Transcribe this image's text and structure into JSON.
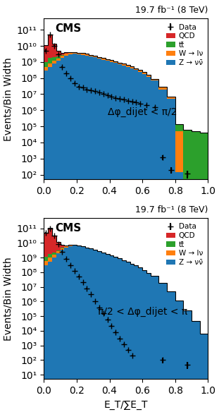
{
  "chart_data": [
    {
      "type": "bar",
      "stacked": true,
      "log": "y",
      "legend": "upper right",
      "title": "19.7 fb⁻¹ (8 TeV)",
      "ylabel": "Events/Bin Width",
      "annotations": [
        "CMS",
        "Δφ_dijet < π/2"
      ],
      "xlim": [
        0,
        1
      ],
      "xticks": [
        {
          "value": 0,
          "label": "0.0"
        },
        0.2,
        0.4,
        0.6,
        0.8,
        {
          "value": 1,
          "label": "1.0"
        }
      ],
      "ylim": [
        50,
        500000000000.0
      ],
      "yticks": [
        {
          "value": 100,
          "label": "10²"
        },
        {
          "value": 1000,
          "label": "10³"
        },
        {
          "value": 10000,
          "label": "10⁴"
        },
        {
          "value": 100000,
          "label": "10⁵"
        },
        {
          "value": 1000000,
          "label": "10⁶"
        },
        {
          "value": 10000000,
          "label": "10⁷"
        },
        {
          "value": 100000000,
          "label": "10⁸"
        },
        {
          "value": 1000000000,
          "label": "10⁹"
        },
        {
          "value": 10000000000,
          "label": "10¹⁰"
        },
        {
          "value": 100000000000,
          "label": "10¹¹"
        }
      ],
      "bins": [
        0.0,
        0.025,
        0.05,
        0.075,
        0.1,
        0.125,
        0.15,
        0.175,
        0.2,
        0.225,
        0.25,
        0.275,
        0.3,
        0.325,
        0.35,
        0.375,
        0.4,
        0.425,
        0.45,
        0.475,
        0.5,
        0.525,
        0.55,
        0.575,
        0.6,
        0.625,
        0.65,
        0.7,
        0.75,
        0.8,
        0.85,
        0.9,
        0.95,
        1.0
      ],
      "series": [
        {
          "name": "Z → νν̄",
          "values": [
            300000000.0,
            500000000.0,
            800000000.0,
            1200000000.0,
            1800000000.0,
            2500000000.0,
            3000000000.0,
            3200000000.0,
            3000000000.0,
            2800000000.0,
            2500000000.0,
            2200000000.0,
            1900000000.0,
            1600000000.0,
            1400000000.0,
            1200000000.0,
            1000000000.0,
            850000000.0,
            700000000.0,
            600000000.0,
            500000000.0,
            400000000.0,
            320000000.0,
            250000000.0,
            180000000.0,
            120000000.0,
            70000000.0,
            20000000.0,
            5000000.0,
            150,
            0,
            0,
            0
          ]
        },
        {
          "name": "W → lν",
          "values": [
            200000000.0,
            300000000.0,
            400000000.0,
            500000000.0,
            600000000.0,
            700000000.0,
            750000000.0,
            700000000.0,
            650000000.0,
            600000000.0,
            550000000.0,
            500000000.0,
            450000000.0,
            400000000.0,
            350000000.0,
            300000000.0,
            260000000.0,
            220000000.0,
            190000000.0,
            160000000.0,
            130000000.0,
            110000000.0,
            90000000.0,
            70000000.0,
            50000000.0,
            35000000.0,
            20000000.0,
            8000000.0,
            2000000.0,
            50000.0,
            0,
            0,
            0
          ]
        },
        {
          "name": "tt̄",
          "values": [
            500000000.0,
            1000000000.0,
            800000000.0,
            400000000.0,
            200000000.0,
            120000000.0,
            80000000.0,
            50000000.0,
            35000000.0,
            25000000.0,
            18000000.0,
            13000000.0,
            9000000.0,
            7000000.0,
            5000000.0,
            4000000.0,
            3000000.0,
            2500000.0,
            2000000.0,
            1500000.0,
            1200000.0,
            900000.0,
            700000.0,
            500000.0,
            400000.0,
            300000.0,
            200000.0,
            150000.0,
            100000.0,
            80000.0,
            60000.0,
            50000.0,
            40000.0
          ]
        },
        {
          "name": "QCD",
          "values": [
            10000000000.0,
            50000000000.0,
            12000000000.0,
            3000000000.0,
            1200000000.0,
            600000000.0,
            350000000.0,
            220000000.0,
            150000000.0,
            110000000.0,
            80000000.0,
            60000000.0,
            45000000.0,
            35000000.0,
            28000000.0,
            22000000.0,
            18000000.0,
            14000000.0,
            11000000.0,
            9000000.0,
            7000000.0,
            5500000.0,
            4500000.0,
            3500000.0,
            2800000.0,
            0,
            0,
            0,
            0,
            0,
            0,
            0,
            0
          ]
        },
        {
          "name": "Data",
          "type": "errorbar",
          "color": "black",
          "marker": "plus",
          "x": [
            0.0125,
            0.0375,
            0.0625,
            0.0875,
            0.1125,
            0.1375,
            0.1625,
            0.1875,
            0.2125,
            0.2375,
            0.2625,
            0.2875,
            0.3125,
            0.3375,
            0.3625,
            0.3875,
            0.4125,
            0.4375,
            0.4625,
            0.4875,
            0.5125,
            0.5375,
            0.5625,
            0.5875,
            0.625,
            0.675,
            0.725,
            0.775,
            0.875
          ],
          "values": [
            5000000000.0,
            50000000000.0,
            10000000000.0,
            3000000000.0,
            500000000.0,
            200000000.0,
            100000000.0,
            50000000.0,
            30000000.0,
            25000000.0,
            20000000.0,
            18000000.0,
            15000000.0,
            13000000.0,
            11000000.0,
            9000000.0,
            7000000.0,
            6000000.0,
            5000000.0,
            4500000.0,
            4000000.0,
            3500000.0,
            3000000.0,
            2500000.0,
            2000000.0,
            1500000.0,
            1200.0,
            200,
            120
          ],
          "yerr_low": [
            1000000000.0,
            3000000000.0,
            800000000.0,
            300000000.0,
            50000000.0,
            20000000.0,
            10000000.0,
            5000000.0,
            3000000.0,
            2500000.0,
            2000000.0,
            1800000.0,
            1500000.0,
            1300000.0,
            1100000.0,
            900000.0,
            700000.0,
            600000.0,
            500000.0,
            450000.0,
            400000.0,
            350000.0,
            300000.0,
            250000.0,
            200000.0,
            150000.0,
            400.0,
            80,
            60
          ],
          "yerr_high": [
            1000000000.0,
            3000000000.0,
            800000000.0,
            300000000.0,
            50000000.0,
            20000000.0,
            10000000.0,
            5000000.0,
            3000000.0,
            2500000.0,
            2000000.0,
            1800000.0,
            1500000.0,
            1300000.0,
            1100000.0,
            900000.0,
            700000.0,
            600000.0,
            500000.0,
            450000.0,
            400000.0,
            350000.0,
            300000.0,
            250000.0,
            200000.0,
            150000.0,
            400.0,
            80,
            60
          ]
        }
      ]
    },
    {
      "type": "bar",
      "stacked": true,
      "log": "y",
      "legend": "upper right",
      "title": "19.7 fb⁻¹ (8 TeV)",
      "xlabel": "E_T/∑E_T",
      "ylabel": "Events/Bin Width",
      "annotations": [
        "CMS",
        "π/2 < Δφ_dijet < π"
      ],
      "xlim": [
        0,
        1
      ],
      "xticks": [
        {
          "value": 0,
          "label": "0.0"
        },
        0.2,
        0.4,
        0.6,
        0.8,
        {
          "value": 1,
          "label": "1.0"
        }
      ],
      "ylim": [
        5,
        500000000000.0
      ],
      "yticks": [
        {
          "value": 10,
          "label": "10¹"
        },
        {
          "value": 100,
          "label": "10²"
        },
        {
          "value": 1000,
          "label": "10³"
        },
        {
          "value": 10000,
          "label": "10⁴"
        },
        {
          "value": 100000,
          "label": "10⁵"
        },
        {
          "value": 1000000,
          "label": "10⁶"
        },
        {
          "value": 10000000,
          "label": "10⁷"
        },
        {
          "value": 100000000,
          "label": "10⁸"
        },
        {
          "value": 1000000000,
          "label": "10⁹"
        },
        {
          "value": 10000000000,
          "label": "10¹⁰"
        },
        {
          "value": 100000000000,
          "label": "10¹¹"
        }
      ],
      "bins": [
        0.0,
        0.025,
        0.05,
        0.075,
        0.1,
        0.125,
        0.15,
        0.175,
        0.2,
        0.225,
        0.25,
        0.275,
        0.3,
        0.325,
        0.35,
        0.375,
        0.4,
        0.425,
        0.45,
        0.475,
        0.5,
        0.525,
        0.55,
        0.575,
        0.6,
        0.625,
        0.65,
        0.7,
        0.75,
        0.8,
        0.85,
        0.9,
        0.95,
        1.0
      ],
      "series": [
        {
          "name": "Z → νν̄",
          "values": [
            300000000.0,
            500000000.0,
            1000000000.0,
            2000000000.0,
            3500000000.0,
            5000000000.0,
            6000000000.0,
            6500000000.0,
            6000000000.0,
            5500000000.0,
            4800000000.0,
            4000000000.0,
            3300000000.0,
            2700000000.0,
            2200000000.0,
            1800000000.0,
            1400000000.0,
            1100000000.0,
            850000000.0,
            650000000.0,
            500000000.0,
            380000000.0,
            280000000.0,
            200000000.0,
            140000000.0,
            90000000.0,
            55000000.0,
            18000000.0,
            5000000.0,
            1200000.0,
            250000.0,
            45000.0,
            6000.0
          ]
        },
        {
          "name": "W → lν",
          "values": [
            300000000.0,
            500000000.0,
            600000000.0,
            700000000.0,
            750000000.0,
            700000000.0,
            600000000.0,
            500000000.0,
            400000000.0,
            300000000.0,
            220000000.0,
            160000000.0,
            120000000.0,
            85000000.0,
            60000000.0,
            45000000.0,
            32000000.0,
            23000000.0,
            16000000.0,
            11000000.0,
            8000000.0,
            5500000.0,
            4000000.0,
            2800000.0,
            1800000.0,
            1100000.0,
            600000.0,
            200000.0,
            60000.0,
            15000.0,
            3000.0,
            600.0,
            100.0
          ]
        },
        {
          "name": "tt̄",
          "values": [
            500000000.0,
            800000000.0,
            700000000.0,
            500000000.0,
            350000000.0,
            250000000.0,
            180000000.0,
            130000000.0,
            90000000.0,
            60000000.0,
            40000000.0,
            28000000.0,
            20000000.0,
            14000000.0,
            10000000.0,
            7000000.0,
            5000000.0,
            3500000.0,
            2500000.0,
            1800000.0,
            1300000.0,
            900000.0,
            600000.0,
            400000.0,
            250000.0,
            150000.0,
            80000.0,
            30000.0,
            10000.0,
            3500.0,
            1200.0,
            400.0,
            150.0
          ]
        },
        {
          "name": "QCD",
          "values": [
            50000000000.0,
            100000000000.0,
            30000000000.0,
            8000000000.0,
            2500000000.0,
            800000000.0,
            300000000.0,
            120000000.0,
            50000000.0,
            20000000.0,
            8000000.0,
            3500000.0,
            1500000.0,
            600000.0,
            250000.0,
            100000.0,
            40000.0,
            15000.0,
            6000.0,
            2500.0,
            1000.0,
            400.0,
            0,
            0,
            0,
            0,
            0,
            0,
            0,
            0,
            0,
            0,
            0
          ]
        },
        {
          "name": "Data",
          "type": "errorbar",
          "color": "black",
          "marker": "plus",
          "x": [
            0.0125,
            0.0375,
            0.0625,
            0.0875,
            0.1125,
            0.1375,
            0.1625,
            0.1875,
            0.2125,
            0.2375,
            0.2625,
            0.2875,
            0.3125,
            0.3375,
            0.3625,
            0.3875,
            0.4125,
            0.4375,
            0.4625,
            0.4875,
            0.5125,
            0.5375,
            0.5625,
            0.5875,
            0.625,
            0.675,
            0.725,
            0.875
          ],
          "values": [
            50000000000.0,
            100000000000.0,
            30000000000.0,
            8000000000.0,
            2500000000.0,
            800000000.0,
            300000000.0,
            120000000.0,
            50000000.0,
            20000000.0,
            8000000.0,
            3000000.0,
            1000000.0,
            400000.0,
            150000.0,
            60000.0,
            22000.0,
            8000.0,
            3000.0,
            1200.0,
            500.0,
            200.0,
            0,
            0,
            0,
            0,
            100,
            50
          ],
          "yerr_low": [
            3000000000.0,
            5000000000.0,
            2000000000.0,
            600000000.0,
            200000000.0,
            60000000.0,
            25000000.0,
            10000000.0,
            4000000.0,
            1500000.0,
            600000.0,
            250000.0,
            80000.0,
            30000.0,
            12000.0,
            5000.0,
            2000.0,
            800.0,
            300.0,
            120.0,
            50.0,
            20.0,
            0,
            0,
            0,
            0,
            40,
            25
          ],
          "yerr_high": [
            3000000000.0,
            5000000000.0,
            2000000000.0,
            600000000.0,
            200000000.0,
            60000000.0,
            25000000.0,
            10000000.0,
            4000000.0,
            1500000.0,
            600000.0,
            250000.0,
            80000.0,
            30000.0,
            12000.0,
            5000.0,
            2000.0,
            800.0,
            300.0,
            120.0,
            50.0,
            20.0,
            0,
            0,
            0,
            0,
            40,
            25
          ]
        }
      ]
    }
  ]
}
